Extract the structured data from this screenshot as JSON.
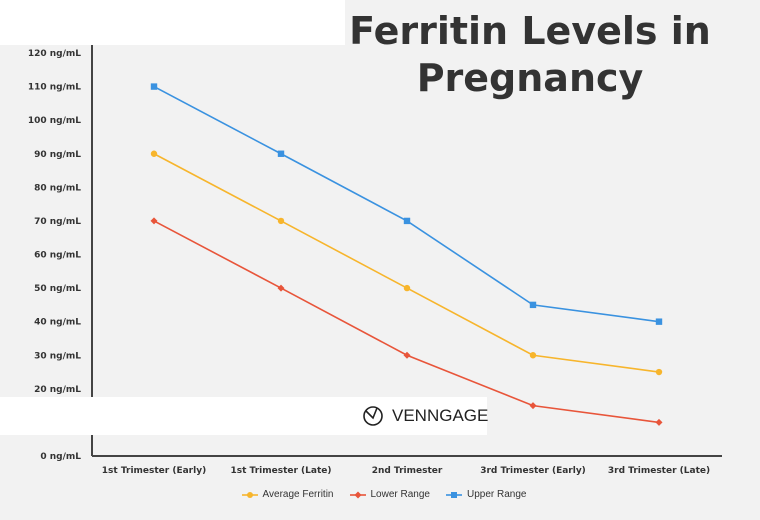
{
  "chart_data": {
    "type": "line",
    "title": "Ferritin Levels in Pregnancy",
    "categories": [
      "1st Trimester (Early)",
      "1st Trimester (Late)",
      "2nd Trimester",
      "3rd Trimester (Early)",
      "3rd Trimester (Late)"
    ],
    "yticks": [
      "0 ng/mL",
      "20 ng/mL",
      "30 ng/mL",
      "40 ng/mL",
      "50 ng/mL",
      "60 ng/mL",
      "70 ng/mL",
      "80 ng/mL",
      "90 ng/mL",
      "100 ng/mL",
      "110 ng/mL",
      "120 ng/mL"
    ],
    "ytick_values": [
      0,
      20,
      30,
      40,
      50,
      60,
      70,
      80,
      90,
      100,
      110,
      120
    ],
    "ylim": [
      0,
      120
    ],
    "grid": false,
    "legend_position": "bottom",
    "series": [
      {
        "name": "Average Ferritin",
        "values": [
          90,
          70,
          50,
          30,
          25
        ],
        "color": "#f7b52c",
        "marker": "circle"
      },
      {
        "name": "Lower Range",
        "values": [
          70,
          50,
          30,
          15,
          10
        ],
        "color": "#e8553a",
        "marker": "diamond"
      },
      {
        "name": "Upper Range",
        "values": [
          110,
          90,
          70,
          45,
          40
        ],
        "color": "#3a92e0",
        "marker": "square"
      }
    ]
  },
  "branding": {
    "logo_text": "VENNGAGE"
  }
}
